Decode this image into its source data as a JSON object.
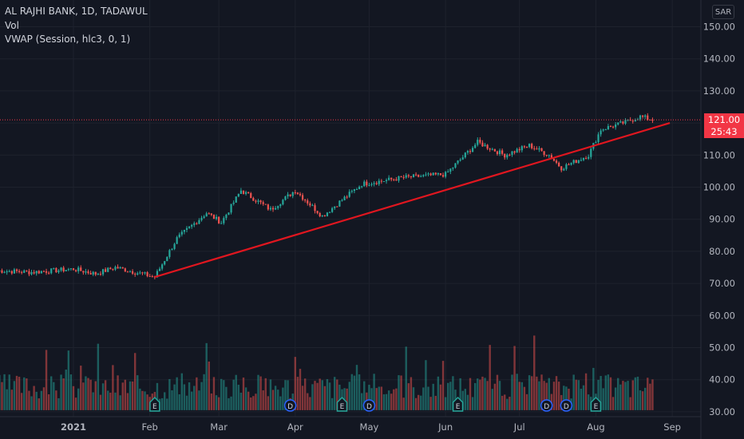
{
  "legend": {
    "symbol": "AL RAJHI BANK, 1D, TADAWUL",
    "volume": "Vol",
    "vwap": "VWAP (Session, hlc3, 0, 1)"
  },
  "currency": "SAR",
  "last_price": {
    "value": "121.00",
    "countdown": "25:43"
  },
  "colors": {
    "background": "#131722",
    "grid": "#1e222d",
    "up": "#26a69a",
    "down": "#ef5350",
    "trendline": "#e0161f",
    "price_line": "#f23645"
  },
  "chart_data": {
    "type": "candlestick",
    "x_labels": [
      "2021",
      "Feb",
      "Mar",
      "Apr",
      "May",
      "Jun",
      "Jul",
      "Aug",
      "Sep"
    ],
    "y_ticks": [
      "150.00",
      "140.00",
      "130.00",
      "120.00",
      "110.00",
      "100.00",
      "90.00",
      "80.00",
      "70.00",
      "60.00",
      "50.00",
      "40.00",
      "30.00"
    ],
    "ylim": [
      30,
      152
    ],
    "trendline": {
      "from": {
        "date": "2021-02-03",
        "price": 72
      },
      "to": {
        "date": "2021-08-31",
        "price": 120
      }
    },
    "price_path": [
      {
        "date": "2020-12-01",
        "close": 74
      },
      {
        "date": "2020-12-15",
        "close": 73.5
      },
      {
        "date": "2021-01-01",
        "close": 74.5
      },
      {
        "date": "2021-01-10",
        "close": 73
      },
      {
        "date": "2021-01-18",
        "close": 75
      },
      {
        "date": "2021-02-03",
        "close": 72
      },
      {
        "date": "2021-02-12",
        "close": 84
      },
      {
        "date": "2021-02-24",
        "close": 92
      },
      {
        "date": "2021-03-02",
        "close": 89
      },
      {
        "date": "2021-03-10",
        "close": 99
      },
      {
        "date": "2021-03-22",
        "close": 93
      },
      {
        "date": "2021-04-01",
        "close": 99
      },
      {
        "date": "2021-04-12",
        "close": 91
      },
      {
        "date": "2021-04-28",
        "close": 101
      },
      {
        "date": "2021-05-15",
        "close": 103
      },
      {
        "date": "2021-06-01",
        "close": 104
      },
      {
        "date": "2021-06-14",
        "close": 114
      },
      {
        "date": "2021-06-25",
        "close": 110
      },
      {
        "date": "2021-07-05",
        "close": 113
      },
      {
        "date": "2021-07-13",
        "close": 110
      },
      {
        "date": "2021-07-18",
        "close": 106
      },
      {
        "date": "2021-07-29",
        "close": 110
      },
      {
        "date": "2021-08-03",
        "close": 118
      },
      {
        "date": "2021-08-12",
        "close": 120
      },
      {
        "date": "2021-08-19",
        "close": 122
      },
      {
        "date": "2021-08-24",
        "close": 121
      }
    ],
    "volume_ylim": [
      30,
      68
    ],
    "event_markers": [
      "E",
      "D",
      "E",
      "D",
      "E",
      "D",
      "D",
      "E"
    ]
  }
}
